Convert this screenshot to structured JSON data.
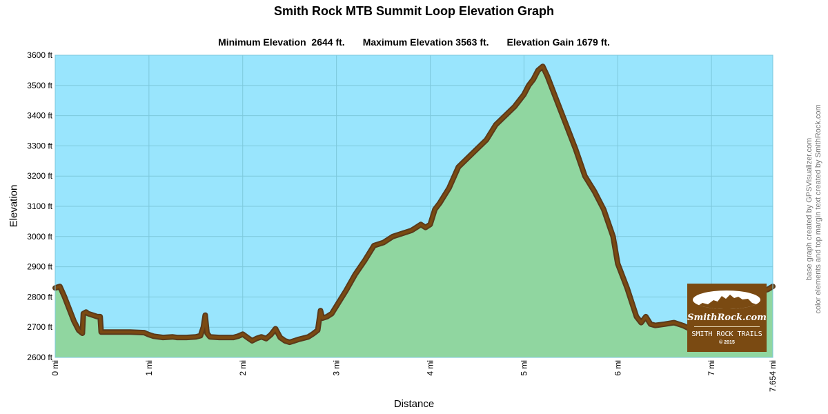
{
  "title": "Smith Rock MTB Summit Loop Elevation Graph",
  "stats": {
    "min": "Minimum Elevation  2644 ft.",
    "max": "Maximum Elevation 3563 ft.",
    "gain": "Elevation Gain 1679 ft."
  },
  "credits": {
    "line1": "base graph created by GPSVisualizer.com",
    "line2": "color elements and top margin text created by SmithRock.com"
  },
  "logo": {
    "name": "SmithRock.com",
    "trails": "SMITH ROCK TRAILS",
    "copyright": "© 2015"
  },
  "colors": {
    "sky": "#99e5fd",
    "fill": "#90d6a0",
    "line_outer": "#5a3a1b",
    "line_inner": "#7a4a12",
    "grid": "#7dc8dc",
    "logo_bg": "#7a4a12"
  },
  "chart_data": {
    "type": "area",
    "title": "Smith Rock MTB Summit Loop Elevation Graph",
    "xlabel": "Distance",
    "ylabel": "Elevation",
    "xlim": [
      0,
      7.654
    ],
    "ylim": [
      2600,
      3600
    ],
    "grid": true,
    "x_ticks": [
      "0 mi",
      "1 mi",
      "2 mi",
      "3 mi",
      "4 mi",
      "5 mi",
      "6 mi",
      "7 mi",
      "7.654 mi"
    ],
    "x_tick_values": [
      0,
      1,
      2,
      3,
      4,
      5,
      6,
      7,
      7.654
    ],
    "y_ticks": [
      "2600 ft",
      "2700 ft",
      "2800 ft",
      "2900 ft",
      "3000 ft",
      "3100 ft",
      "3200 ft",
      "3300 ft",
      "3400 ft",
      "3500 ft",
      "3600 ft"
    ],
    "y_tick_values": [
      2600,
      2700,
      2800,
      2900,
      3000,
      3100,
      3200,
      3300,
      3400,
      3500,
      3600
    ],
    "series": [
      {
        "x": [
          0,
          0.05,
          0.1,
          0.15,
          0.2,
          0.25,
          0.29,
          0.3,
          0.33,
          0.35,
          0.4,
          0.45,
          0.48,
          0.49,
          0.6,
          0.8,
          0.95,
          1.0,
          1.05,
          1.15,
          1.25,
          1.3,
          1.4,
          1.5,
          1.55,
          1.58,
          1.6,
          1.62,
          1.65,
          1.75,
          1.9,
          1.95,
          2.0,
          2.05,
          2.1,
          2.15,
          2.2,
          2.25,
          2.3,
          2.35,
          2.4,
          2.45,
          2.5,
          2.55,
          2.6,
          2.65,
          2.7,
          2.75,
          2.8,
          2.83,
          2.85,
          2.9,
          2.95,
          3.0,
          3.1,
          3.2,
          3.3,
          3.4,
          3.5,
          3.6,
          3.7,
          3.8,
          3.85,
          3.9,
          3.95,
          4.0,
          4.05,
          4.1,
          4.2,
          4.3,
          4.4,
          4.5,
          4.6,
          4.7,
          4.8,
          4.9,
          5.0,
          5.05,
          5.1,
          5.15,
          5.2,
          5.25,
          5.35,
          5.45,
          5.55,
          5.65,
          5.75,
          5.85,
          5.95,
          6.0,
          6.1,
          6.2,
          6.25,
          6.3,
          6.35,
          6.4,
          6.5,
          6.6,
          6.7,
          6.8,
          6.9,
          7.0,
          7.1,
          7.2,
          7.3,
          7.4,
          7.5,
          7.55,
          7.6,
          7.654
        ],
        "y": [
          2830,
          2835,
          2800,
          2760,
          2720,
          2690,
          2680,
          2745,
          2750,
          2745,
          2740,
          2735,
          2735,
          2684,
          2684,
          2684,
          2682,
          2675,
          2670,
          2666,
          2668,
          2666,
          2666,
          2668,
          2672,
          2700,
          2740,
          2680,
          2668,
          2666,
          2666,
          2670,
          2677,
          2666,
          2655,
          2663,
          2668,
          2662,
          2675,
          2695,
          2666,
          2655,
          2650,
          2655,
          2660,
          2664,
          2668,
          2678,
          2690,
          2755,
          2730,
          2735,
          2745,
          2770,
          2820,
          2875,
          2920,
          2970,
          2980,
          3000,
          3010,
          3020,
          3030,
          3040,
          3030,
          3040,
          3090,
          3110,
          3160,
          3230,
          3260,
          3290,
          3320,
          3370,
          3400,
          3430,
          3470,
          3500,
          3520,
          3550,
          3563,
          3530,
          3450,
          3370,
          3290,
          3200,
          3150,
          3090,
          3000,
          2910,
          2830,
          2735,
          2715,
          2735,
          2710,
          2706,
          2710,
          2715,
          2705,
          2690,
          2680,
          2690,
          2760,
          2775,
          2795,
          2810,
          2815,
          2820,
          2825,
          2835
        ]
      }
    ]
  }
}
